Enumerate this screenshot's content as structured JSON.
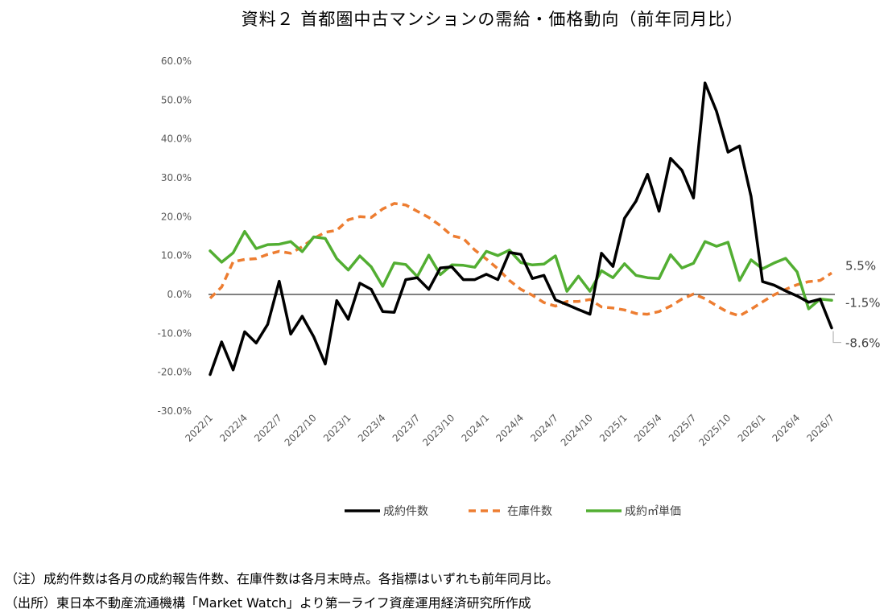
{
  "title": "資料２ 首都圏中古マンションの需給・価格動向（前年同月比）",
  "notes": [
    "（注）成約件数は各月の成約報告件数、在庫件数は各月末時点。各指標はいずれも前年同月比。",
    "（出所）東日本不動産流通機構「Market Watch」より第一ライフ資産運用経済研究所作成"
  ],
  "chart_data": {
    "type": "line",
    "ylim": [
      -30,
      60
    ],
    "ytick_labels": [
      "60.0%",
      "50.0%",
      "40.0%",
      "30.0%",
      "20.0%",
      "10.0%",
      "0.0%",
      "-10.0%",
      "-20.0%",
      "-30.0%"
    ],
    "x_tick_labels": [
      "2022/1",
      "2022/4",
      "2022/7",
      "2022/10",
      "2023/1",
      "2023/4",
      "2023/7",
      "2023/10",
      "2024/1",
      "2024/4",
      "2024/7",
      "2024/10",
      "2025/1",
      "2025/4",
      "2025/7",
      "2025/10",
      "2026/1",
      "2026/4",
      "2026/7"
    ],
    "months": [
      "2022/1",
      "2022/2",
      "2022/3",
      "2022/4",
      "2022/5",
      "2022/6",
      "2022/7",
      "2022/8",
      "2022/9",
      "2022/10",
      "2022/11",
      "2022/12",
      "2023/1",
      "2023/2",
      "2023/3",
      "2023/4",
      "2023/5",
      "2023/6",
      "2023/7",
      "2023/8",
      "2023/9",
      "2023/10",
      "2023/11",
      "2023/12",
      "2024/1",
      "2024/2",
      "2024/3",
      "2024/4",
      "2024/5",
      "2024/6",
      "2024/7",
      "2024/8",
      "2024/9",
      "2024/10",
      "2024/11",
      "2024/12",
      "2025/1",
      "2025/2",
      "2025/3",
      "2025/4",
      "2025/5",
      "2025/6",
      "2025/7",
      "2025/8",
      "2025/9",
      "2025/10",
      "2025/11",
      "2025/12",
      "2026/1",
      "2026/2",
      "2026/3",
      "2026/4",
      "2026/5",
      "2026/6",
      "2026/7"
    ],
    "series": [
      {
        "name": "成約件数",
        "color": "#000000",
        "dash": "solid",
        "values": [
          -20.6,
          -12.2,
          -19.4,
          -9.6,
          -12.5,
          -7.7,
          3.4,
          -10.2,
          -5.6,
          -10.9,
          -17.9,
          -1.6,
          -6.4,
          2.9,
          1.3,
          -4.4,
          -4.6,
          3.8,
          4.3,
          1.3,
          6.8,
          7.1,
          3.8,
          3.8,
          5.2,
          3.8,
          10.8,
          10.3,
          4.1,
          4.9,
          -1.4,
          -2.6,
          -3.9,
          -5.1,
          10.6,
          7.2,
          19.6,
          24.0,
          30.9,
          21.4,
          35.0,
          31.9,
          24.8,
          54.4,
          47.1,
          36.6,
          38.2,
          25.2,
          3.3,
          2.4,
          0.9,
          -0.4,
          -2.0,
          -1.2,
          -8.6
        ]
      },
      {
        "name": "在庫件数",
        "color": "#ED7D31",
        "dash": "dashed",
        "values": [
          -1.0,
          1.9,
          8.4,
          9.0,
          9.2,
          10.3,
          11.1,
          10.6,
          12.3,
          14.4,
          16.0,
          16.5,
          19.2,
          20.0,
          19.8,
          22.0,
          23.4,
          23.0,
          21.4,
          19.8,
          17.7,
          15.1,
          14.4,
          11.4,
          9.1,
          6.6,
          3.6,
          1.3,
          -0.2,
          -2.1,
          -3.0,
          -1.8,
          -1.8,
          -1.3,
          -3.2,
          -3.5,
          -4.0,
          -4.9,
          -5.1,
          -4.4,
          -3.0,
          -1.2,
          0.1,
          -1.1,
          -2.9,
          -4.6,
          -5.5,
          -3.8,
          -1.9,
          -0.1,
          1.3,
          2.5,
          3.3,
          3.6,
          5.5
        ]
      },
      {
        "name": "成約㎡単価",
        "color": "#52AE32",
        "dash": "solid",
        "values": [
          11.2,
          8.3,
          10.7,
          16.2,
          11.8,
          12.8,
          12.9,
          13.6,
          11.0,
          14.8,
          14.4,
          9.2,
          6.3,
          9.9,
          7.1,
          2.1,
          8.1,
          7.7,
          4.6,
          10.1,
          5.1,
          7.6,
          7.5,
          7.0,
          11.1,
          10.0,
          11.4,
          8.2,
          7.6,
          7.8,
          9.9,
          0.8,
          4.7,
          0.8,
          6.1,
          4.3,
          7.9,
          4.9,
          4.3,
          4.1,
          10.2,
          6.8,
          8.0,
          13.6,
          12.4,
          13.4,
          3.6,
          8.9,
          6.6,
          8.1,
          9.3,
          5.8,
          -3.7,
          -1.2,
          -1.5
        ]
      }
    ],
    "end_labels": [
      "5.5%",
      "-1.5%",
      "-8.6%"
    ],
    "legend_position": "bottom",
    "grid": false
  }
}
